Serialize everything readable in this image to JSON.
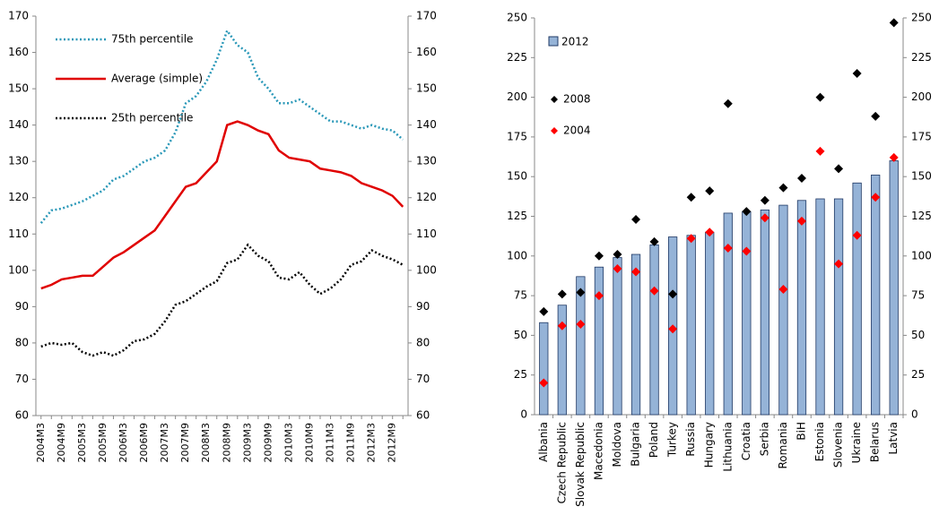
{
  "chart_data": [
    {
      "type": "line",
      "categories": [
        "2004M3",
        null,
        "2004M9",
        null,
        "2005M3",
        null,
        "2005M9",
        null,
        "2006M3",
        null,
        "2006M9",
        null,
        "2007M3",
        null,
        "2007M9",
        null,
        "2008M3",
        null,
        "2008M9",
        null,
        "2009M3",
        null,
        "2009M9",
        null,
        "2010M3",
        null,
        "2010M9",
        null,
        "2011M3",
        null,
        "2011M9",
        null,
        "2012M3",
        null,
        "2012M9",
        null
      ],
      "series": [
        {
          "name": "75th percentile",
          "color": "#2a98b8",
          "style": "dotted",
          "values": [
            113,
            116.5,
            117,
            118,
            119,
            120.5,
            122,
            125,
            126,
            128,
            130,
            131,
            133,
            138,
            146,
            148,
            152,
            158,
            166,
            162,
            160,
            153,
            150,
            146,
            146,
            147,
            145,
            143,
            141,
            141,
            140,
            139,
            140,
            139,
            138.5,
            136
          ]
        },
        {
          "name": "Average (simple)",
          "color": "#e00000",
          "style": "solid",
          "values": [
            95,
            96,
            97.5,
            98,
            98.5,
            98.5,
            101,
            103.5,
            105,
            107,
            109,
            111,
            115,
            119,
            123,
            124,
            127,
            130,
            140,
            141,
            140,
            138.5,
            137.5,
            133,
            131,
            130.5,
            130,
            128,
            127.5,
            127,
            126,
            124,
            123,
            122,
            120.5,
            117.5
          ]
        },
        {
          "name": "25th percentile",
          "color": "#000000",
          "style": "dotted",
          "values": [
            79,
            80,
            79.5,
            80,
            77.5,
            76.5,
            77.5,
            76.5,
            78,
            80.5,
            81,
            82.5,
            86,
            90.5,
            91.5,
            93.5,
            95.5,
            97,
            102,
            103,
            107,
            104,
            102.5,
            98,
            97.5,
            99.5,
            96,
            93.5,
            95,
            97.5,
            101.5,
            102.5,
            105.5,
            104,
            103,
            101.5
          ]
        }
      ],
      "ylim": [
        60,
        170
      ],
      "yticks": [
        60,
        70,
        80,
        90,
        100,
        110,
        120,
        130,
        140,
        150,
        160,
        170
      ],
      "y2lim": [
        60,
        170
      ],
      "y2ticks": [
        60,
        70,
        80,
        90,
        100,
        110,
        120,
        130,
        140,
        150,
        160,
        170
      ],
      "legend": "top-left"
    },
    {
      "type": "bar",
      "categories": [
        "Albania",
        "Czech Republic",
        "Slovak Republic",
        "Macedonia",
        "Moldova",
        "Bulgaria",
        "Poland",
        "Turkey",
        "Russia",
        "Hungary",
        "Lithuania",
        "Croatia",
        "Serbia",
        "Romania",
        "BiH",
        "Estonia",
        "Slovenia",
        "Ukraine",
        "Belarus",
        "Latvia"
      ],
      "series": [
        {
          "name": "2012",
          "color": "#95b3d7",
          "type": "bar",
          "values": [
            58,
            69,
            87,
            93,
            99,
            101,
            107,
            112,
            113,
            115,
            127,
            128,
            129,
            132,
            135,
            136,
            136,
            146,
            151,
            160
          ]
        },
        {
          "name": "2008",
          "color": "#000000",
          "type": "scatter",
          "values": [
            65,
            76,
            77,
            100,
            101,
            123,
            109,
            76,
            137,
            141,
            196,
            128,
            135,
            143,
            149,
            200,
            155,
            215,
            188,
            247
          ]
        },
        {
          "name": "2004",
          "color": "#ff0000",
          "type": "scatter",
          "values": [
            20,
            56,
            57,
            75,
            92,
            90,
            78,
            54,
            111,
            115,
            105,
            103,
            124,
            79,
            122,
            166,
            95,
            113,
            137,
            162
          ]
        }
      ],
      "ylim": [
        0,
        250
      ],
      "yticks": [
        0,
        25,
        50,
        75,
        100,
        125,
        150,
        175,
        200,
        225,
        250
      ],
      "y2lim": [
        0,
        250
      ],
      "y2ticks": [
        0,
        25,
        50,
        75,
        100,
        125,
        150,
        175,
        200,
        225,
        250
      ],
      "legend": "top-left"
    }
  ]
}
